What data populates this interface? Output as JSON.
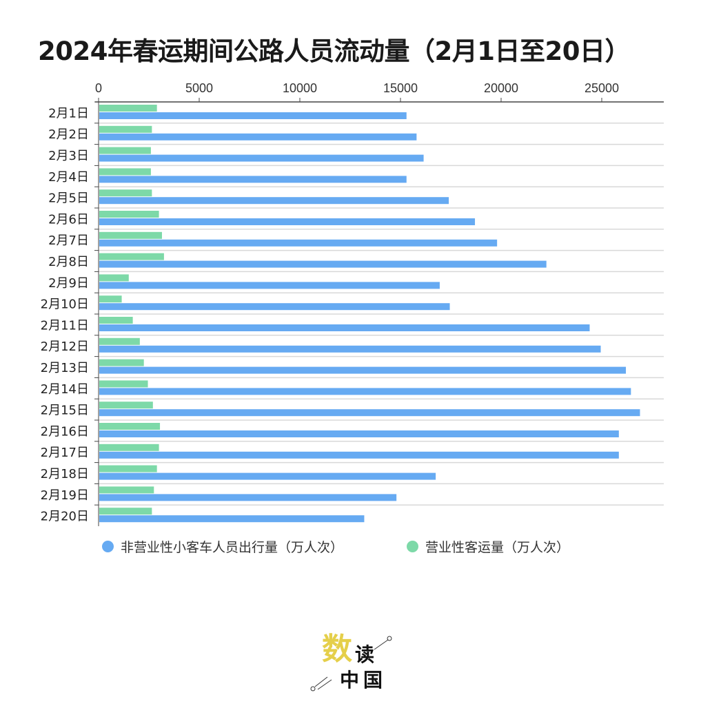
{
  "chart_data": {
    "type": "bar",
    "orientation": "horizontal",
    "title": "2024年春运期间公路人员流动量（2月1日至20日）",
    "categories": [
      "2月1日",
      "2月2日",
      "2月3日",
      "2月4日",
      "2月5日",
      "2月6日",
      "2月7日",
      "2月8日",
      "2月9日",
      "2月10日",
      "2月11日",
      "2月12日",
      "2月13日",
      "2月14日",
      "2月15日",
      "2月16日",
      "2月17日",
      "2月18日",
      "2月19日",
      "2月20日"
    ],
    "series": [
      {
        "name": "非营业性小客车人员出行量（万人次）",
        "color": "#66aaf2",
        "values": [
          15300,
          15800,
          16150,
          15300,
          17400,
          18700,
          19800,
          22250,
          16950,
          17450,
          24400,
          24950,
          26200,
          26450,
          26900,
          25850,
          25850,
          16750,
          14800,
          13200
        ]
      },
      {
        "name": "营业性客运量（万人次）",
        "color": "#7dd9a8",
        "values": [
          2900,
          2650,
          2600,
          2600,
          2650,
          3000,
          3150,
          3250,
          1500,
          1150,
          1700,
          2050,
          2250,
          2450,
          2700,
          3050,
          3000,
          2900,
          2750,
          2650
        ]
      }
    ],
    "xticks": [
      "0",
      "5000",
      "10000",
      "15000",
      "20000",
      "25000"
    ],
    "xlim": [
      0,
      28250
    ],
    "axis_position": "top",
    "grid": "horizontal row lines",
    "legend_position": "bottom"
  },
  "logo": {
    "text": "数读中国"
  }
}
